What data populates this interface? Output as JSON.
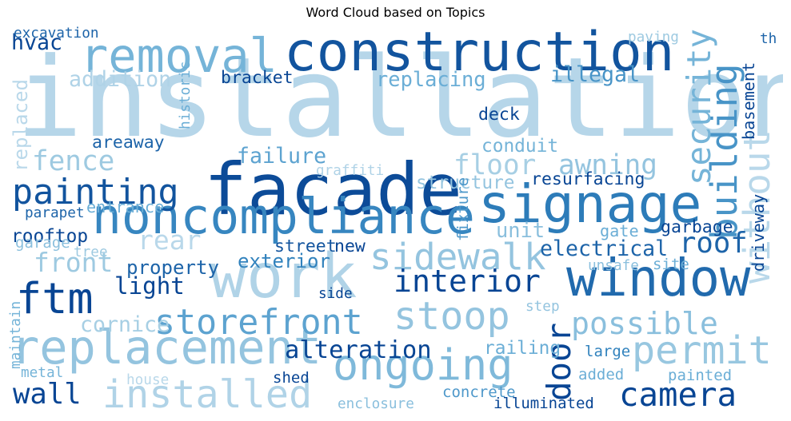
{
  "chart_data": {
    "type": "wordcloud",
    "title": "Word Cloud based on Topics",
    "colormap": "Blues",
    "words": [
      {
        "text": "installation",
        "weight": 1.0,
        "shade": 0.22
      },
      {
        "text": "construction",
        "weight": 0.45,
        "shade": 0.95
      },
      {
        "text": "facade",
        "weight": 0.62,
        "shade": 0.98
      },
      {
        "text": "work",
        "weight": 0.52,
        "shade": 0.25
      },
      {
        "text": "window",
        "weight": 0.42,
        "shade": 0.88
      },
      {
        "text": "signage",
        "weight": 0.44,
        "shade": 0.82
      },
      {
        "text": "noncompliance",
        "weight": 0.4,
        "shade": 0.78
      },
      {
        "text": "removal",
        "weight": 0.38,
        "shade": 0.55
      },
      {
        "text": "replacement",
        "weight": 0.38,
        "shade": 0.4
      },
      {
        "text": "ongoing",
        "weight": 0.34,
        "shade": 0.5
      },
      {
        "text": "installed",
        "weight": 0.3,
        "shade": 0.25
      },
      {
        "text": "permit",
        "weight": 0.3,
        "shade": 0.38
      },
      {
        "text": "ftm",
        "weight": 0.34,
        "shade": 1.0
      },
      {
        "text": "storefront",
        "weight": 0.26,
        "shade": 0.65
      },
      {
        "text": "painting",
        "weight": 0.26,
        "shade": 0.95
      },
      {
        "text": "stoop",
        "weight": 0.3,
        "shade": 0.4
      },
      {
        "text": "sidewalk",
        "weight": 0.28,
        "shade": 0.4
      },
      {
        "text": "building",
        "weight": 0.28,
        "shade": 0.72
      },
      {
        "text": "without",
        "weight": 0.28,
        "shade": 0.2
      },
      {
        "text": "security",
        "weight": 0.24,
        "shade": 0.55
      },
      {
        "text": "camera",
        "weight": 0.24,
        "shade": 1.0
      },
      {
        "text": "door",
        "weight": 0.24,
        "shade": 1.0
      },
      {
        "text": "interior",
        "weight": 0.22,
        "shade": 1.0
      },
      {
        "text": "possible",
        "weight": 0.22,
        "shade": 0.45
      },
      {
        "text": "wall",
        "weight": 0.2,
        "shade": 1.0
      },
      {
        "text": "roof",
        "weight": 0.2,
        "shade": 0.9
      },
      {
        "text": "fence",
        "weight": 0.19,
        "shade": 0.35
      },
      {
        "text": "awning",
        "weight": 0.19,
        "shade": 0.4
      },
      {
        "text": "floor",
        "weight": 0.19,
        "shade": 0.3
      },
      {
        "text": "front",
        "weight": 0.18,
        "shade": 0.35
      },
      {
        "text": "rear",
        "weight": 0.18,
        "shade": 0.2
      },
      {
        "text": "alteration",
        "weight": 0.16,
        "shade": 1.0
      },
      {
        "text": "light",
        "weight": 0.15,
        "shade": 1.0
      },
      {
        "text": "cornice",
        "weight": 0.13,
        "shade": 0.3
      },
      {
        "text": "failure",
        "weight": 0.13,
        "shade": 0.65
      },
      {
        "text": "electrical",
        "weight": 0.13,
        "shade": 0.9
      },
      {
        "text": "illegal",
        "weight": 0.13,
        "shade": 0.72
      },
      {
        "text": "addition",
        "weight": 0.13,
        "shade": 0.25
      },
      {
        "text": "replacing",
        "weight": 0.12,
        "shade": 0.6
      },
      {
        "text": "hvac",
        "weight": 0.13,
        "shade": 1.0
      },
      {
        "text": "unit",
        "weight": 0.12,
        "shade": 0.45
      },
      {
        "text": "property",
        "weight": 0.11,
        "shade": 0.9
      },
      {
        "text": "exterior",
        "weight": 0.11,
        "shade": 0.8
      },
      {
        "text": "replaced",
        "weight": 0.11,
        "shade": 0.2
      },
      {
        "text": "railing",
        "weight": 0.1,
        "shade": 0.6
      },
      {
        "text": "structure",
        "weight": 0.1,
        "shade": 0.4
      },
      {
        "text": "conduit",
        "weight": 0.1,
        "shade": 0.55
      },
      {
        "text": "rooftop",
        "weight": 0.1,
        "shade": 1.0
      },
      {
        "text": "street",
        "weight": 0.09,
        "shade": 0.95
      },
      {
        "text": "new",
        "weight": 0.09,
        "shade": 1.0
      },
      {
        "text": "deck",
        "weight": 0.09,
        "shade": 1.0
      },
      {
        "text": "bracket",
        "weight": 0.09,
        "shade": 1.0
      },
      {
        "text": "resurfacing",
        "weight": 0.09,
        "shade": 1.0
      },
      {
        "text": "garbage",
        "weight": 0.09,
        "shade": 1.0
      },
      {
        "text": "entrance",
        "weight": 0.08,
        "shade": 0.6
      },
      {
        "text": "areaway",
        "weight": 0.09,
        "shade": 0.9
      },
      {
        "text": "gate",
        "weight": 0.08,
        "shade": 0.6
      },
      {
        "text": "driveway",
        "weight": 0.08,
        "shade": 1.0
      },
      {
        "text": "basement",
        "weight": 0.08,
        "shade": 1.0
      },
      {
        "text": "concrete",
        "weight": 0.07,
        "shade": 0.7
      },
      {
        "text": "illuminated",
        "weight": 0.07,
        "shade": 1.0
      },
      {
        "text": "shed",
        "weight": 0.07,
        "shade": 1.0
      },
      {
        "text": "large",
        "weight": 0.07,
        "shade": 0.8
      },
      {
        "text": "added",
        "weight": 0.07,
        "shade": 0.6
      },
      {
        "text": "painted",
        "weight": 0.07,
        "shade": 0.6
      },
      {
        "text": "fixture",
        "weight": 0.07,
        "shade": 0.7
      },
      {
        "text": "garage",
        "weight": 0.07,
        "shade": 0.45
      },
      {
        "text": "site",
        "weight": 0.07,
        "shade": 0.6
      },
      {
        "text": "parapet",
        "weight": 0.06,
        "shade": 0.9
      },
      {
        "text": "excavation",
        "weight": 0.06,
        "shade": 0.9
      },
      {
        "text": "historic",
        "weight": 0.06,
        "shade": 0.6
      },
      {
        "text": "paving",
        "weight": 0.06,
        "shade": 0.35
      },
      {
        "text": "maintain",
        "weight": 0.06,
        "shade": 0.55
      },
      {
        "text": "metal",
        "weight": 0.06,
        "shade": 0.55
      },
      {
        "text": "enclosure",
        "weight": 0.06,
        "shade": 0.45
      },
      {
        "text": "graffiti",
        "weight": 0.06,
        "shade": 0.25
      },
      {
        "text": "tree",
        "weight": 0.06,
        "shade": 0.35
      },
      {
        "text": "side",
        "weight": 0.06,
        "shade": 1.0
      },
      {
        "text": "unsafe",
        "weight": 0.06,
        "shade": 0.45
      },
      {
        "text": "step",
        "weight": 0.06,
        "shade": 0.4
      },
      {
        "text": "th",
        "weight": 0.06,
        "shade": 0.9
      },
      {
        "text": "house",
        "weight": 0.06,
        "shade": 0.2
      }
    ]
  }
}
